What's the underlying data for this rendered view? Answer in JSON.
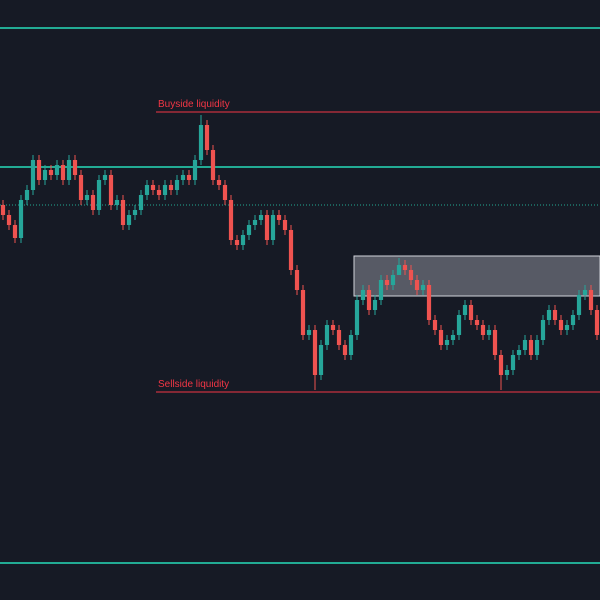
{
  "chart_data": {
    "type": "candlestick",
    "up_color": "#26a69a",
    "down_color": "#ef5350",
    "ylim": [
      0,
      600
    ],
    "series": [
      {
        "open": [
          395,
          385,
          375,
          362,
          400,
          410,
          440,
          420,
          430,
          425,
          435,
          420,
          440,
          425,
          400,
          405,
          390,
          420,
          425,
          395,
          400,
          375,
          385,
          390,
          405,
          415,
          410,
          405,
          415,
          410,
          420,
          425,
          420,
          440,
          475,
          450,
          420,
          415,
          400,
          360,
          355,
          365,
          375,
          380,
          385,
          360,
          385,
          380,
          370,
          330,
          310,
          265,
          270,
          225,
          255,
          275,
          270,
          255,
          245,
          265,
          300,
          310,
          290,
          300,
          320,
          315,
          325,
          335,
          330,
          320,
          310,
          315,
          280,
          270,
          255,
          260,
          265,
          285,
          295,
          280,
          275,
          265,
          270,
          245,
          225,
          230,
          245,
          250,
          260,
          245,
          260,
          280,
          290,
          280,
          270,
          275,
          285,
          305,
          310,
          290
        ],
        "high": [
          400,
          390,
          380,
          405,
          415,
          445,
          445,
          435,
          435,
          440,
          440,
          445,
          445,
          430,
          410,
          410,
          425,
          430,
          430,
          405,
          405,
          390,
          395,
          410,
          420,
          420,
          415,
          420,
          420,
          425,
          430,
          430,
          445,
          485,
          480,
          455,
          425,
          420,
          405,
          365,
          370,
          380,
          385,
          390,
          390,
          390,
          390,
          385,
          375,
          335,
          315,
          275,
          275,
          260,
          280,
          280,
          275,
          260,
          270,
          305,
          315,
          315,
          305,
          325,
          325,
          330,
          342,
          340,
          335,
          325,
          320,
          320,
          285,
          275,
          265,
          270,
          290,
          300,
          300,
          285,
          280,
          275,
          275,
          250,
          235,
          250,
          255,
          265,
          265,
          265,
          285,
          295,
          295,
          285,
          280,
          290,
          310,
          315,
          315,
          295
        ],
        "low": [
          380,
          370,
          357,
          357,
          395,
          405,
          415,
          415,
          420,
          420,
          415,
          415,
          420,
          395,
          395,
          385,
          385,
          415,
          390,
          390,
          370,
          370,
          380,
          385,
          400,
          405,
          400,
          400,
          405,
          405,
          415,
          415,
          415,
          435,
          445,
          415,
          410,
          395,
          355,
          350,
          350,
          360,
          370,
          375,
          355,
          355,
          375,
          365,
          325,
          305,
          260,
          260,
          210,
          220,
          250,
          265,
          250,
          240,
          240,
          260,
          295,
          285,
          285,
          295,
          310,
          310,
          325,
          325,
          315,
          305,
          305,
          275,
          265,
          250,
          250,
          255,
          260,
          280,
          275,
          270,
          260,
          260,
          240,
          210,
          220,
          225,
          240,
          245,
          240,
          240,
          255,
          275,
          275,
          265,
          265,
          270,
          280,
          300,
          285,
          260
        ],
        "close": [
          385,
          375,
          362,
          400,
          410,
          440,
          420,
          430,
          425,
          435,
          420,
          440,
          425,
          400,
          405,
          390,
          420,
          425,
          395,
          400,
          375,
          385,
          390,
          405,
          415,
          410,
          405,
          415,
          410,
          420,
          425,
          420,
          440,
          475,
          450,
          420,
          415,
          400,
          360,
          355,
          365,
          375,
          380,
          385,
          360,
          385,
          380,
          370,
          330,
          310,
          265,
          270,
          225,
          255,
          275,
          270,
          255,
          245,
          265,
          300,
          310,
          290,
          300,
          320,
          315,
          325,
          335,
          330,
          320,
          310,
          315,
          280,
          270,
          255,
          260,
          265,
          285,
          295,
          280,
          275,
          265,
          270,
          245,
          225,
          230,
          245,
          250,
          260,
          245,
          260,
          280,
          290,
          280,
          270,
          275,
          285,
          305,
          310,
          290,
          265
        ]
      }
    ],
    "levels": [
      {
        "value": 572,
        "color": "#22ab94",
        "style": "solid"
      },
      {
        "value": 433,
        "color": "#22ab94",
        "style": "solid"
      },
      {
        "value": 395,
        "color": "#22ab94",
        "style": "dotted"
      },
      {
        "value": 37,
        "color": "#22ab94",
        "style": "solid"
      }
    ],
    "annotations": [
      {
        "text": "Buyside liquidity",
        "value": 488,
        "start": 26,
        "color": "#f23645"
      },
      {
        "text": "Sellside liquidity",
        "value": 208,
        "start": 26,
        "color": "#f23645"
      }
    ],
    "zone": {
      "low": 304,
      "high": 344,
      "start": 59,
      "color": "#d1d4dc"
    }
  }
}
